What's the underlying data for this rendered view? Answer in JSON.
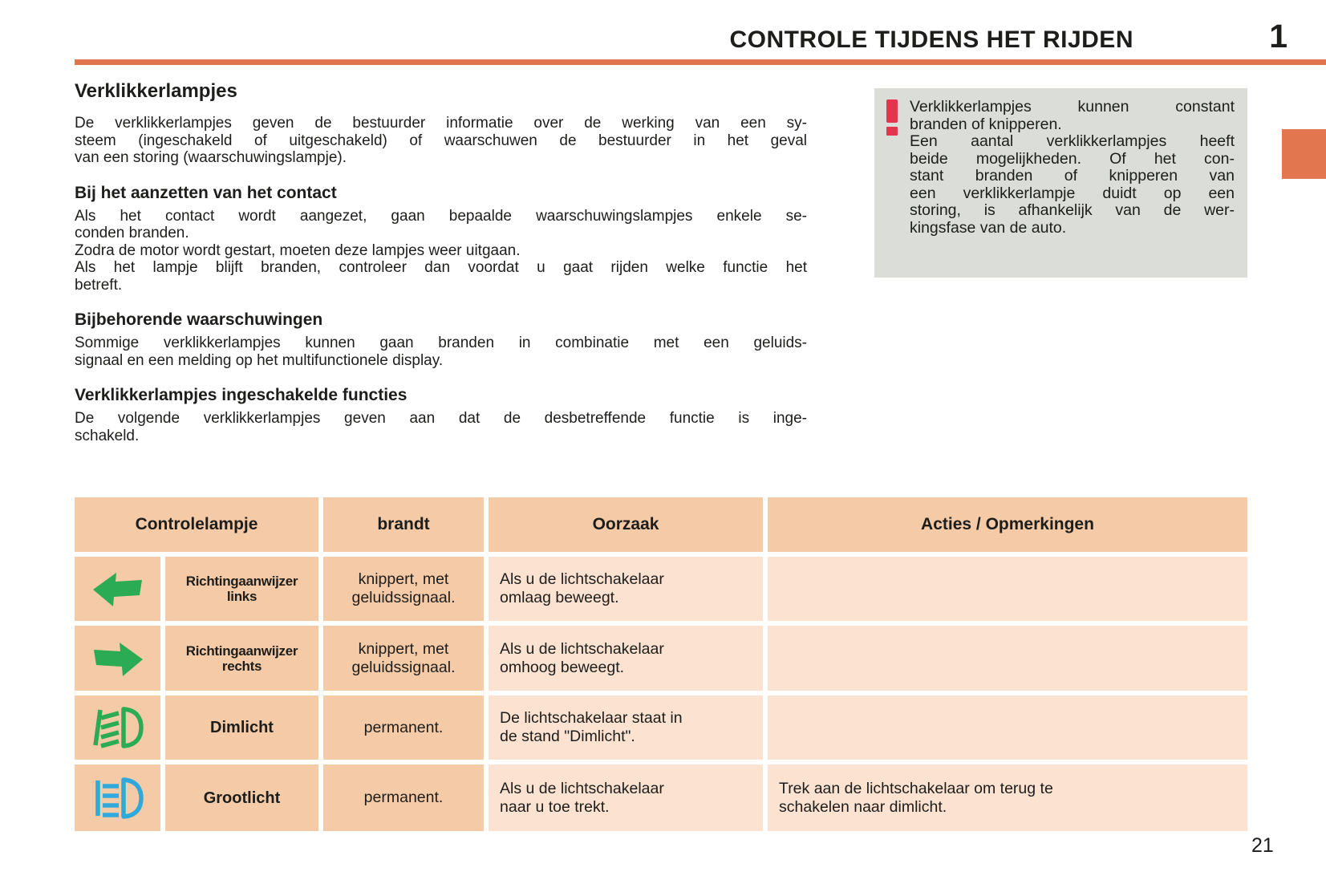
{
  "header": {
    "title": "CONTROLE TIJDENS HET RIJDEN",
    "chapter": "1"
  },
  "article": {
    "title": "Verklikkerlampjes",
    "intro": "De verklikkerlampjes geven de bestuurder informatie over de werking van een sy-\nsteem (ingeschakeld of uitgeschakeld) of waarschuwen de bestuurder in het geval\nvan een storing (waarschuwingslampje).",
    "sections": [
      {
        "heading": "Bij het aanzetten van het contact",
        "paragraphs": [
          "Als het contact wordt aangezet, gaan bepaalde waarschuwingslampjes enkele se-\nconden branden.",
          "Zodra de motor wordt gestart, moeten deze lampjes weer uitgaan.",
          "Als het lampje blijft branden, controleer dan voordat u gaat rijden welke functie het\nbetreft."
        ]
      },
      {
        "heading": "Bijbehorende waarschuwingen",
        "paragraphs": [
          "Sommige verklikkerlampjes kunnen gaan branden in combinatie met een geluids-\nsignaal en een melding op het multifunctionele display."
        ]
      },
      {
        "heading": "Verklikkerlampjes ingeschakelde functies",
        "paragraphs": [
          "De volgende verklikkerlampjes geven aan dat de desbetreffende functie is inge-\nschakeld."
        ]
      }
    ]
  },
  "note_box": {
    "icon": "warning-exclamation-icon",
    "paragraphs": [
      "Verklikkerlampjes kunnen constant\nbranden of knipperen.",
      "Een aantal verklikkerlampjes heeft\nbeide mogelijkheden. Of het con-\nstant branden of knipperen van\neen verklikkerlampje duidt op een\nstoring, is afhankelijk van de wer-\nkingsfase van de auto."
    ]
  },
  "table": {
    "headers": [
      "Controlelampje",
      "brandt",
      "Oorzaak",
      "Acties / Opmerkingen"
    ],
    "rows": [
      {
        "icon": "turn-signal-left",
        "label": "Richtingaanwijzer\nlinks",
        "brandt": "knippert, met\ngeluidssignaal.",
        "oorzaak": "Als u de lichtschakelaar\nomlaag beweegt.",
        "acties": ""
      },
      {
        "icon": "turn-signal-right",
        "label": "Richtingaanwijzer\nrechts",
        "brandt": "knippert, met\ngeluidssignaal.",
        "oorzaak": "Als u de lichtschakelaar\nomhoog beweegt.",
        "acties": ""
      },
      {
        "icon": "low-beam",
        "label": "Dimlicht",
        "brandt": "permanent.",
        "oorzaak": "De lichtschakelaar staat in\nde stand \"Dimlicht\".",
        "acties": ""
      },
      {
        "icon": "high-beam",
        "label": "Grootlicht",
        "brandt": "permanent.",
        "oorzaak": "Als u de lichtschakelaar\nnaar u toe trekt.",
        "acties": "Trek aan de lichtschakelaar om terug te\nschakelen naar dimlicht."
      }
    ]
  },
  "page_number": "21",
  "colors": {
    "accent_orange": "#E2764E",
    "table_header_bg": "#F5CAA7",
    "table_cell_bg": "#FCE2D0",
    "note_bg": "#DBDDD8",
    "indicator_green": "#2BAB53",
    "indicator_blue": "#2FA9DB",
    "warning_red": "#E4344E",
    "text": "#1D1D1B"
  }
}
